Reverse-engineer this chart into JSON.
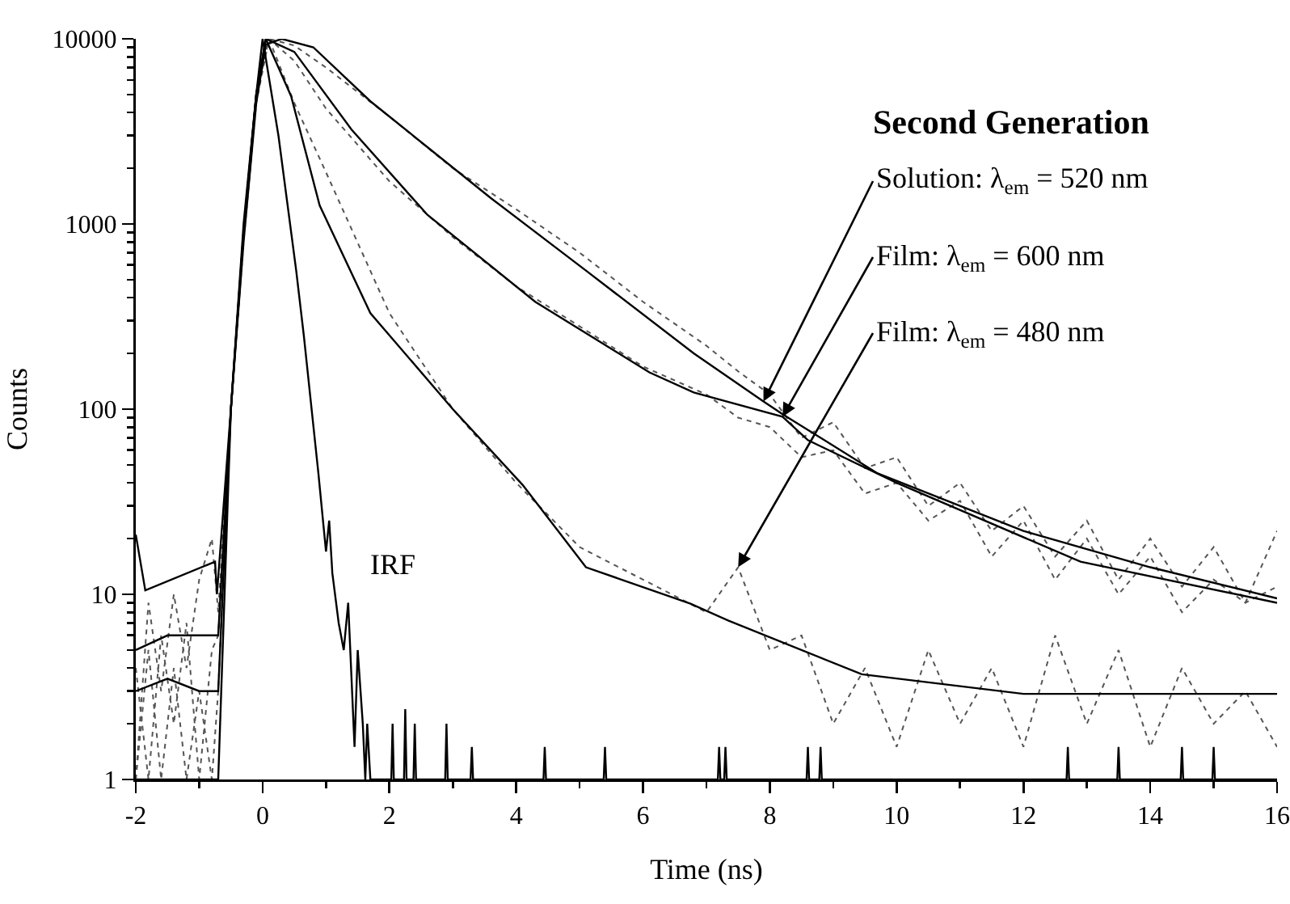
{
  "chart_data": {
    "type": "line",
    "title": "Second Generation",
    "xlabel": "Time (ns)",
    "ylabel": "Counts",
    "log": true,
    "grid": false,
    "marker": "none",
    "xlim": [
      -2,
      16
    ],
    "xticks": [
      -2,
      0,
      2,
      4,
      6,
      8,
      10,
      12,
      14,
      16
    ],
    "ylim": [
      1,
      10000
    ],
    "yticks": [
      1,
      10,
      100,
      1000,
      10000
    ],
    "annotations": [
      {
        "text": "Solution: λ$_{em}$ = 520 nm",
        "x": 7.9,
        "y": 110
      },
      {
        "text": "Film: λ$_{em}$ = 600 nm",
        "x": 8.2,
        "y": 91
      },
      {
        "text": "Film: λ$_{em}$ = 480 nm",
        "x": 7.5,
        "y": 14
      },
      "IRF"
    ],
    "series": [
      {
        "color": "#555555",
        "line_style": "dotted",
        "x": [
          -2,
          -1.8,
          -1.6,
          -1.4,
          -1.2,
          -1,
          -0.8,
          -0.7,
          -0.5,
          -0.3,
          -0.1,
          0.1,
          0.5,
          1,
          2,
          3,
          4,
          5,
          6,
          7,
          7.5,
          8,
          8.5,
          9,
          9.5,
          10,
          10.5,
          11,
          11.5,
          12,
          12.5,
          13,
          13.5,
          14,
          14.5,
          15,
          15.5,
          16
        ],
        "values": [
          1,
          9,
          3,
          10,
          4,
          12,
          20,
          8,
          100,
          800,
          4500,
          10000,
          9200,
          7000,
          3800,
          2000,
          1200,
          700,
          380,
          220,
          160,
          120,
          70,
          85,
          48,
          55,
          30,
          40,
          22,
          30,
          16,
          25,
          12,
          20,
          11,
          18,
          9,
          22
        ]
      },
      {
        "color": "#555555",
        "line_style": "dotted",
        "x": [
          -2,
          -1.8,
          -1.6,
          -1.4,
          -1.2,
          -1,
          -0.8,
          -0.7,
          -0.5,
          -0.3,
          -0.1,
          0.1,
          0.5,
          1,
          2,
          3,
          4,
          5,
          6,
          7,
          7.5,
          8,
          8.5,
          9,
          9.5,
          10,
          10.5,
          11,
          11.5,
          12,
          12.5,
          13,
          13.5,
          14,
          14.5,
          15,
          15.5,
          16
        ],
        "values": [
          4,
          1,
          6,
          2,
          7,
          1,
          5,
          6,
          100,
          900,
          5000,
          10000,
          7600,
          4200,
          1700,
          850,
          460,
          280,
          170,
          120,
          90,
          80,
          55,
          60,
          35,
          40,
          25,
          32,
          16,
          25,
          12,
          20,
          10,
          16,
          8,
          12,
          9,
          11
        ]
      },
      {
        "color": "#555555",
        "line_style": "dotted",
        "x": [
          -2,
          -1.8,
          -1.6,
          -1.4,
          -1.2,
          -1,
          -0.8,
          -0.7,
          -0.5,
          -0.3,
          -0.1,
          0.1,
          0.5,
          1,
          2,
          3,
          4,
          5,
          6,
          7,
          7.5,
          8,
          8.5,
          9,
          9.5,
          10,
          10.5,
          11,
          11.5,
          12,
          12.5,
          13,
          13.5,
          14,
          14.5,
          15,
          15.5,
          16
        ],
        "values": [
          1,
          5,
          1,
          4,
          1,
          3,
          1,
          3,
          100,
          900,
          5000,
          10000,
          4500,
          1900,
          330,
          100,
          40,
          18,
          12,
          8,
          14,
          5,
          6,
          2,
          4,
          1.5,
          5,
          2,
          4,
          1.5,
          6,
          2,
          5,
          1.5,
          4,
          2,
          3,
          1.5
        ]
      },
      {
        "color": "#000000",
        "line_style": "solid",
        "x": [
          -2,
          -1.85,
          -0.75,
          -0.72,
          -0.5,
          -0.3,
          -0.1,
          0.05,
          0.3,
          0.8,
          1.7,
          2.6,
          3.6,
          5.1,
          6.8,
          7.9,
          8.2,
          9.7,
          12,
          14,
          16
        ],
        "values": [
          21,
          10.5,
          15,
          10,
          100,
          800,
          4500,
          9300,
          10000,
          9000,
          4600,
          2600,
          1380,
          560,
          200,
          110,
          94,
          45,
          22,
          14,
          9.5
        ]
      },
      {
        "color": "#000000",
        "line_style": "solid",
        "x": [
          -2,
          -1.5,
          -1,
          -0.7,
          -0.5,
          -0.3,
          -0.1,
          0.05,
          0.5,
          1.4,
          2.6,
          4.3,
          6.1,
          6.8,
          8.2,
          8.6,
          10,
          12.9,
          16
        ],
        "values": [
          5,
          6,
          6,
          6,
          100,
          900,
          5000,
          10000,
          8500,
          3240,
          1120,
          380,
          158,
          123,
          91,
          68,
          40,
          15,
          9
        ]
      },
      {
        "color": "#000000",
        "line_style": "solid",
        "x": [
          -2,
          -1.5,
          -1,
          -0.7,
          -0.5,
          -0.3,
          -0.1,
          0.05,
          0.45,
          0.9,
          1.7,
          3,
          4.1,
          5.1,
          6.75,
          7.35,
          9.45,
          12,
          14,
          16
        ],
        "values": [
          3,
          3.5,
          3,
          3,
          100,
          900,
          5000,
          10000,
          4900,
          1260,
          330,
          100,
          39,
          14,
          8.9,
          7.2,
          3.7,
          2.9,
          2.9,
          2.9
        ]
      },
      {
        "color": "#000000",
        "line_style": "solid",
        "x": [
          -2,
          -0.7,
          -0.5,
          -0.3,
          -0.1,
          0,
          0.25,
          0.53,
          0.65,
          0.88,
          1,
          1.05,
          1.1,
          1.2,
          1.28,
          1.35,
          1.45,
          1.5,
          1.58,
          1.62,
          1.65,
          1.7,
          2.03,
          2.05,
          2.07,
          2.23,
          2.25,
          2.27,
          2.38,
          2.4,
          2.42,
          2.88,
          2.9,
          2.92,
          3.28,
          3.3,
          3.32,
          4.43,
          4.45,
          4.47,
          5.38,
          5.4,
          5.42,
          7.18,
          7.2,
          7.22,
          7.28,
          7.3,
          7.32,
          8.58,
          8.6,
          8.62,
          8.78,
          8.8,
          8.82,
          12.68,
          12.7,
          12.72,
          13.48,
          13.5,
          13.52,
          14.48,
          14.5,
          14.52,
          14.98,
          15,
          15.02,
          16
        ],
        "values": [
          1,
          1,
          100,
          1000,
          5000,
          10000,
          3000,
          560,
          250,
          45,
          17,
          25,
          13,
          7,
          5,
          9,
          1.5,
          5,
          2,
          1,
          2,
          1,
          1,
          2,
          1,
          1,
          2.4,
          1,
          1,
          2,
          1,
          1,
          2,
          1,
          1,
          1.5,
          1,
          1,
          1.5,
          1,
          1,
          1.5,
          1,
          1,
          1.5,
          1,
          1,
          1.5,
          1,
          1,
          1.5,
          1,
          1,
          1.5,
          1,
          1,
          1.5,
          1,
          1,
          1.5,
          1,
          1,
          1.5,
          1,
          1,
          1.5,
          1,
          1
        ]
      }
    ]
  }
}
